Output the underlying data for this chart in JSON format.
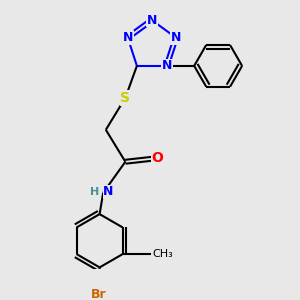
{
  "bg_color": "#e8e8e8",
  "atom_colors": {
    "N": "#0000ff",
    "O": "#ff0000",
    "S": "#cccc00",
    "Br": "#cc6600",
    "C": "#000000",
    "H": "#4a9090"
  },
  "font_size": 9,
  "bond_lw": 1.5
}
